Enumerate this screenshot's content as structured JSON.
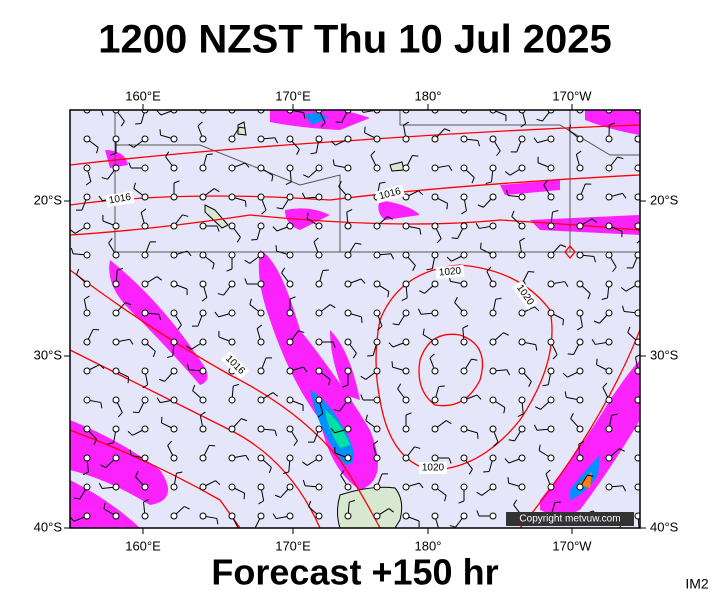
{
  "header": {
    "title": "1200 NZST Thu 10 Jul 2025"
  },
  "map": {
    "top_labels": [
      "160°E",
      "170°E",
      "180°",
      "170°W"
    ],
    "bottom_labels": [
      "160°E",
      "170°E",
      "180°",
      "170°W"
    ],
    "left_labels": [
      "20°S",
      "30°S",
      "40°S"
    ],
    "right_labels": [
      "20°S",
      "30°S",
      "40°S"
    ],
    "isobar_labels": [
      "1016",
      "1016",
      "1020",
      "1020",
      "1016",
      "1020"
    ],
    "copyright": "Copyright metvuw.com"
  },
  "footer": {
    "caption": "Forecast +150 hr",
    "code": "IM2"
  }
}
